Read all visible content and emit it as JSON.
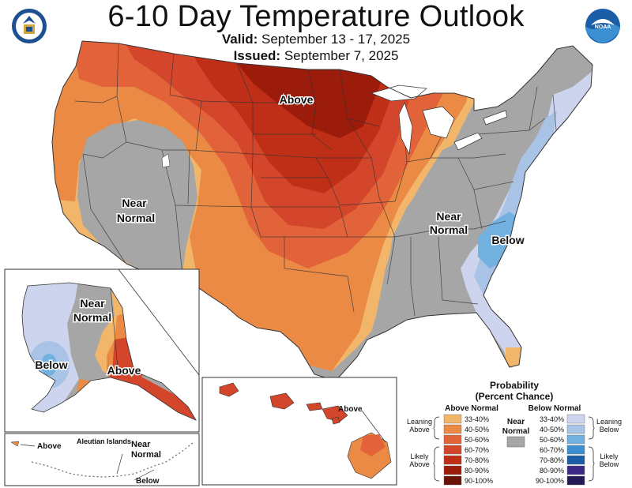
{
  "header": {
    "title": "6-10 Day Temperature Outlook",
    "valid_label": "Valid:",
    "valid_dates": "September 13 - 17, 2025",
    "issued_label": "Issued:",
    "issued_date": "September 7, 2025",
    "left_seal_icon": "commerce-seal-icon",
    "right_seal_icon": "noaa-logo-icon",
    "right_seal_text": "NOAA"
  },
  "map": {
    "conus_labels": {
      "above": "Above",
      "near_normal_west_1": "Near",
      "near_normal_west_2": "Normal",
      "near_normal_east_1": "Near",
      "near_normal_east_2": "Normal",
      "below_east": "Below"
    },
    "alaska_labels": {
      "near_1": "Near",
      "near_2": "Normal",
      "below": "Below",
      "above": "Above"
    },
    "aleutian_labels": {
      "above": "Above",
      "islands": "Aleutian Islands",
      "near_1": "Near",
      "near_2": "Normal",
      "below": "Below"
    },
    "hawaii_labels": {
      "above": "Above"
    }
  },
  "legend": {
    "title_1": "Probability",
    "title_2": "(Percent Chance)",
    "above_header": "Above Normal",
    "below_header": "Below Normal",
    "near_header_1": "Near",
    "near_header_2": "Normal",
    "near_color": "#a6a6a6",
    "above_items": [
      {
        "label": "33-40%",
        "color": "#f2b66b"
      },
      {
        "label": "40-50%",
        "color": "#ea8a45"
      },
      {
        "label": "50-60%",
        "color": "#e2633a"
      },
      {
        "label": "60-70%",
        "color": "#d4462b"
      },
      {
        "label": "70-80%",
        "color": "#bf2f17"
      },
      {
        "label": "80-90%",
        "color": "#9b1c0b"
      },
      {
        "label": "90-100%",
        "color": "#6a1206"
      }
    ],
    "below_items": [
      {
        "label": "33-40%",
        "color": "#cdd5ee"
      },
      {
        "label": "40-50%",
        "color": "#a9c3e6"
      },
      {
        "label": "50-60%",
        "color": "#72b0e0"
      },
      {
        "label": "60-70%",
        "color": "#3c8fd0"
      },
      {
        "label": "70-80%",
        "color": "#1a5ea8"
      },
      {
        "label": "80-90%",
        "color": "#3a2a86"
      },
      {
        "label": "90-100%",
        "color": "#221a55"
      }
    ],
    "leaning_above_1": "Leaning",
    "leaning_above_2": "Above",
    "likely_above_1": "Likely",
    "likely_above_2": "Above",
    "leaning_below_1": "Leaning",
    "leaning_below_2": "Below",
    "likely_below_1": "Likely",
    "likely_below_2": "Below"
  }
}
